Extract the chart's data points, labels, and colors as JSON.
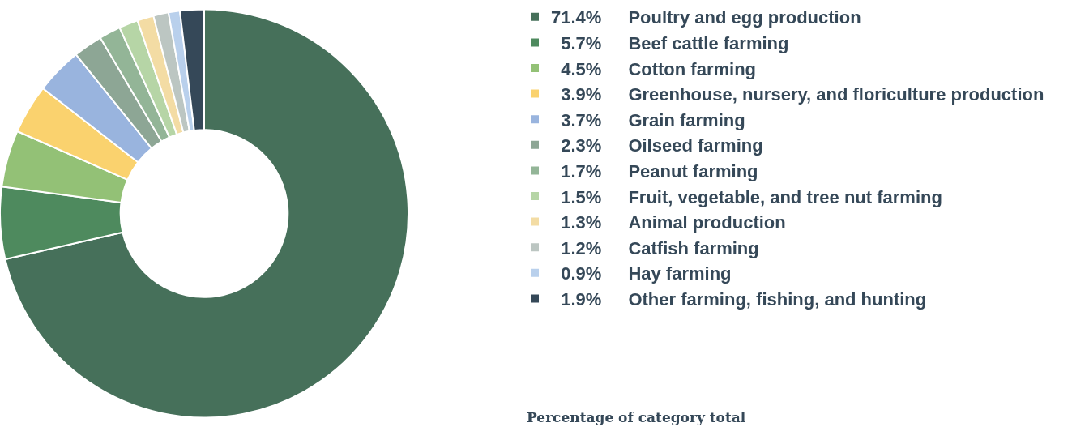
{
  "chart_data": {
    "type": "donut",
    "categories": [
      "Poultry and egg production",
      "Beef cattle farming",
      "Cotton farming",
      "Greenhouse, nursery, and floriculture production",
      "Grain farming",
      "Oilseed farming",
      "Peanut farming",
      "Fruit, vegetable, and tree nut farming",
      "Animal production",
      "Catfish farming",
      "Hay farming",
      "Other farming, fishing, and hunting"
    ],
    "values": [
      71.4,
      5.7,
      4.5,
      3.9,
      3.7,
      2.3,
      1.7,
      1.5,
      1.3,
      1.2,
      0.9,
      1.9
    ],
    "value_labels": [
      "71.4%",
      "5.7%",
      "4.5%",
      "3.9%",
      "3.7%",
      "2.3%",
      "1.7%",
      "1.5%",
      "1.3%",
      "1.2%",
      "0.9%",
      "1.9%"
    ],
    "colors": [
      "#46705a",
      "#4e8a5e",
      "#93c176",
      "#fad26e",
      "#99b4de",
      "#8da695",
      "#93b597",
      "#b6d5a6",
      "#f3dca4",
      "#bcc6c2",
      "#b9d0ec",
      "#354858"
    ],
    "legend": "right",
    "annotations": [
      "Percentage of category total"
    ]
  }
}
